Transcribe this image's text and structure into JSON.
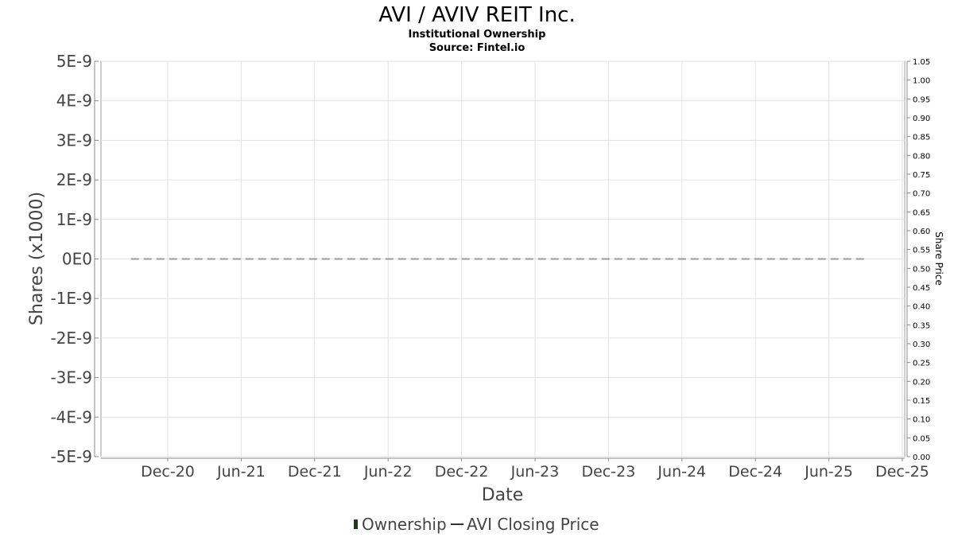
{
  "chart_data": {
    "type": "line",
    "title": "AVI / AVIV REIT Inc.",
    "subtitle_lines": [
      "Institutional Ownership",
      "Source: Fintel.io"
    ],
    "xlabel": "Date",
    "ylabel": "Shares (x1000)",
    "y2label": "Share Price",
    "x_ticks": [
      "Dec-20",
      "Jun-21",
      "Dec-21",
      "Jun-22",
      "Dec-22",
      "Jun-23",
      "Dec-23",
      "Jun-24",
      "Dec-24",
      "Jun-25",
      "Dec-25"
    ],
    "y_ticks": [
      "5E-9",
      "4E-9",
      "3E-9",
      "2E-9",
      "1E-9",
      "0E0",
      "-1E-9",
      "-2E-9",
      "-3E-9",
      "-4E-9",
      "-5E-9"
    ],
    "y2_ticks": [
      "1.05",
      "1.00",
      "0.95",
      "0.90",
      "0.85",
      "0.80",
      "0.75",
      "0.70",
      "0.65",
      "0.60",
      "0.55",
      "0.50",
      "0.45",
      "0.40",
      "0.35",
      "0.30",
      "0.25",
      "0.20",
      "0.15",
      "0.10",
      "0.05",
      "0.00"
    ],
    "ylim": [
      -5e-09,
      5e-09
    ],
    "y2lim": [
      0.0,
      1.05
    ],
    "grid": true,
    "legend_position": "bottom",
    "series": [
      {
        "name": "Ownership",
        "axis": "left",
        "color": "#1a3d1a",
        "style": "dashed",
        "points": [
          {
            "x": "2020-09",
            "y": 0
          },
          {
            "x": "2025-09",
            "y": 0
          }
        ]
      },
      {
        "name": "AVI Closing Price",
        "axis": "right",
        "color": "#333333",
        "style": "solid",
        "points": []
      }
    ]
  }
}
